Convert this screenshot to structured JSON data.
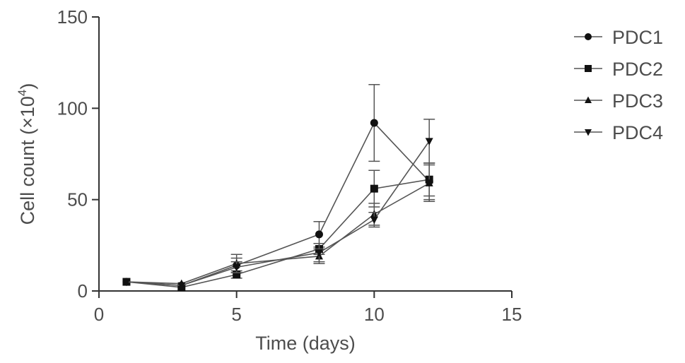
{
  "chart_data": {
    "type": "line",
    "title": "",
    "xlabel": "Time (days)",
    "ylabel_main": "Cell count (×10",
    "ylabel_sup": "4",
    "ylabel_close": ")",
    "xlim": [
      0,
      15
    ],
    "ylim": [
      0,
      150
    ],
    "xticks": [
      0,
      5,
      10,
      15
    ],
    "yticks": [
      0,
      50,
      100,
      150
    ],
    "grid": false,
    "legend_position": "top-right",
    "x": [
      1,
      3,
      5,
      8,
      10,
      12
    ],
    "series": [
      {
        "name": "PDC1",
        "marker": "circle",
        "values": [
          5,
          3,
          14,
          31,
          92,
          60
        ],
        "error": [
          1,
          1,
          4,
          7,
          21,
          10
        ]
      },
      {
        "name": "PDC2",
        "marker": "square",
        "values": [
          5,
          2,
          9,
          23,
          56,
          61
        ],
        "error": [
          1,
          1,
          2,
          3,
          10,
          9
        ]
      },
      {
        "name": "PDC3",
        "marker": "triangle-up",
        "values": [
          5,
          4,
          15,
          19,
          42,
          59
        ],
        "error": [
          1,
          1,
          5,
          4,
          6,
          10
        ]
      },
      {
        "name": "PDC4",
        "marker": "triangle-down",
        "values": [
          5,
          3,
          13,
          21,
          39,
          82
        ],
        "error": [
          1,
          1,
          3,
          5,
          4,
          12
        ]
      }
    ]
  }
}
